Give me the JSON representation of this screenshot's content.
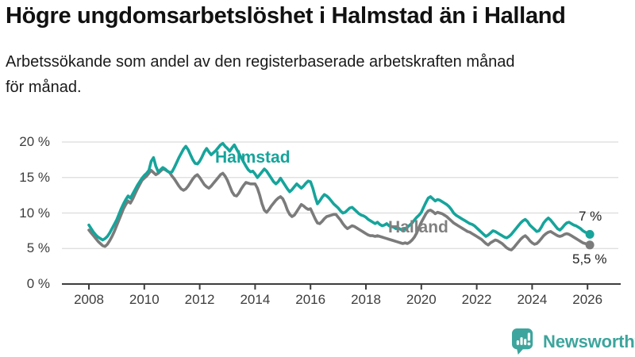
{
  "header": {
    "title": "Högre ungdomsarbetslöshet i Halmstad än i Halland",
    "subtitle": "Arbetssökande som andel av den registerbaserade arbetskraften månad\nför månad."
  },
  "chart_data": {
    "type": "line",
    "title": "Högre ungdomsarbetslöshet i Halmstad än i Halland",
    "subtitle": "Arbetssökande som andel av den registerbaserade arbetskraften månad för månad.",
    "x_unit": "month",
    "x_start_year": 2008,
    "x_end": "2026-02",
    "x_ticks": [
      2008,
      2010,
      2012,
      2014,
      2016,
      2018,
      2020,
      2022,
      2024,
      2026
    ],
    "y_ticks": [
      {
        "value": 20,
        "label": "20 %"
      },
      {
        "value": 15,
        "label": "15 %"
      },
      {
        "value": 10,
        "label": "10 %"
      },
      {
        "value": 5,
        "label": "5 %"
      },
      {
        "value": 0,
        "label": "0 %"
      }
    ],
    "ylim": [
      0,
      21
    ],
    "grid": true,
    "legend_position": "inline-labels",
    "colors": {
      "grid": "#dcdcdc",
      "axis": "#3d3d3d"
    },
    "series": [
      {
        "name": "Halmstad",
        "color": "#16a49b",
        "end_label": "7 %",
        "end_value": 7.0,
        "values": [
          8.3,
          7.8,
          7.3,
          6.9,
          6.6,
          6.4,
          6.2,
          6.4,
          6.7,
          7.2,
          7.8,
          8.4,
          9.0,
          9.8,
          10.6,
          11.3,
          11.9,
          12.4,
          12.1,
          12.7,
          13.3,
          13.9,
          14.4,
          14.9,
          15.3,
          15.6,
          16.0,
          17.3,
          17.8,
          16.6,
          15.8,
          16.1,
          16.4,
          16.2,
          15.9,
          15.7,
          15.8,
          16.4,
          17.1,
          17.8,
          18.4,
          19.0,
          19.4,
          18.9,
          18.2,
          17.5,
          17.0,
          16.9,
          17.3,
          17.9,
          18.6,
          19.1,
          18.6,
          18.2,
          18.5,
          18.8,
          19.2,
          19.6,
          19.8,
          19.4,
          19.1,
          18.7,
          19.2,
          19.6,
          19.0,
          18.4,
          17.8,
          17.2,
          16.6,
          16.1,
          15.8,
          15.9,
          15.5,
          15.0,
          15.4,
          15.8,
          16.2,
          15.9,
          15.4,
          14.9,
          14.4,
          14.1,
          14.4,
          14.9,
          14.4,
          13.9,
          13.4,
          13.0,
          13.3,
          13.7,
          14.1,
          13.8,
          13.5,
          13.8,
          14.2,
          14.5,
          14.4,
          13.5,
          12.3,
          11.3,
          11.7,
          12.2,
          12.6,
          12.4,
          12.1,
          11.7,
          11.3,
          11.0,
          10.7,
          10.3,
          10.0,
          10.1,
          10.4,
          10.7,
          10.8,
          10.5,
          10.2,
          9.9,
          9.7,
          9.6,
          9.4,
          9.1,
          8.9,
          8.7,
          8.5,
          8.7,
          8.4,
          8.2,
          8.3,
          8.5,
          8.2,
          8.1,
          8.0,
          7.8,
          7.9,
          7.7,
          7.6,
          7.8,
          8.0,
          8.3,
          8.6,
          9.0,
          9.4,
          9.7,
          10.1,
          10.8,
          11.5,
          12.1,
          12.3,
          12.0,
          11.7,
          11.9,
          11.8,
          11.6,
          11.4,
          11.2,
          10.9,
          10.5,
          10.0,
          9.7,
          9.5,
          9.3,
          9.1,
          8.9,
          8.7,
          8.5,
          8.4,
          8.2,
          7.9,
          7.6,
          7.3,
          7.0,
          6.7,
          6.9,
          7.2,
          7.5,
          7.4,
          7.2,
          7.0,
          6.8,
          6.6,
          6.5,
          6.7,
          7.0,
          7.4,
          7.8,
          8.2,
          8.6,
          8.9,
          9.1,
          8.8,
          8.3,
          8.0,
          7.7,
          7.4,
          7.5,
          8.0,
          8.6,
          9.0,
          9.3,
          9.0,
          8.6,
          8.2,
          7.8,
          7.6,
          7.9,
          8.3,
          8.6,
          8.7,
          8.5,
          8.3,
          8.2,
          8.0,
          7.8,
          7.5,
          7.3,
          7.2,
          7.0
        ]
      },
      {
        "name": "Halland",
        "color": "#7b7b7b",
        "end_label": "5,5 %",
        "end_value": 5.5,
        "values": [
          7.6,
          7.2,
          6.8,
          6.4,
          6.0,
          5.7,
          5.4,
          5.3,
          5.6,
          6.1,
          6.7,
          7.4,
          8.2,
          9.0,
          9.8,
          10.6,
          11.2,
          11.7,
          11.4,
          12.0,
          12.7,
          13.4,
          14.0,
          14.6,
          14.9,
          15.2,
          15.6,
          16.0,
          15.7,
          15.4,
          15.6,
          15.9,
          16.2,
          16.1,
          15.9,
          15.7,
          15.2,
          14.8,
          14.3,
          13.8,
          13.4,
          13.2,
          13.4,
          13.8,
          14.3,
          14.8,
          15.2,
          15.4,
          15.0,
          14.5,
          14.0,
          13.7,
          13.5,
          13.8,
          14.2,
          14.6,
          15.0,
          15.4,
          15.6,
          15.2,
          14.6,
          13.8,
          13.0,
          12.5,
          12.4,
          12.8,
          13.4,
          13.9,
          14.3,
          14.2,
          14.1,
          14.1,
          14.1,
          13.5,
          12.5,
          11.3,
          10.4,
          10.1,
          10.5,
          11.0,
          11.4,
          11.8,
          12.1,
          12.3,
          12.0,
          11.3,
          10.4,
          9.8,
          9.5,
          9.7,
          10.2,
          10.7,
          11.2,
          11.0,
          10.7,
          10.5,
          10.6,
          9.9,
          9.2,
          8.6,
          8.5,
          8.8,
          9.2,
          9.5,
          9.6,
          9.7,
          9.8,
          9.8,
          9.4,
          9.0,
          8.5,
          8.1,
          7.8,
          8.0,
          8.2,
          8.1,
          7.9,
          7.7,
          7.5,
          7.3,
          7.1,
          6.9,
          6.8,
          6.8,
          6.7,
          6.8,
          6.7,
          6.6,
          6.5,
          6.4,
          6.3,
          6.2,
          6.1,
          6.0,
          5.9,
          5.8,
          5.7,
          5.8,
          5.7,
          5.9,
          6.2,
          6.6,
          7.2,
          8.0,
          8.7,
          9.3,
          9.9,
          10.3,
          10.4,
          10.2,
          9.9,
          10.1,
          10.0,
          9.9,
          9.7,
          9.5,
          9.2,
          8.9,
          8.6,
          8.4,
          8.2,
          8.0,
          7.8,
          7.6,
          7.4,
          7.3,
          7.1,
          6.9,
          6.7,
          6.5,
          6.3,
          6.0,
          5.7,
          5.5,
          5.8,
          6.0,
          6.2,
          6.1,
          5.9,
          5.7,
          5.4,
          5.1,
          4.9,
          4.8,
          5.1,
          5.5,
          5.9,
          6.3,
          6.6,
          6.8,
          6.5,
          6.1,
          5.8,
          5.6,
          5.7,
          6.0,
          6.4,
          6.8,
          7.1,
          7.3,
          7.4,
          7.2,
          7.0,
          6.8,
          6.7,
          6.8,
          7.0,
          7.1,
          7.0,
          6.8,
          6.6,
          6.4,
          6.2,
          6.0,
          5.8,
          5.7,
          5.6,
          5.5
        ]
      }
    ]
  },
  "footer": {
    "brand": "Newsworthy",
    "logo_icon": "bar-chart-speech-bubble",
    "brand_color": "#3da59d"
  }
}
